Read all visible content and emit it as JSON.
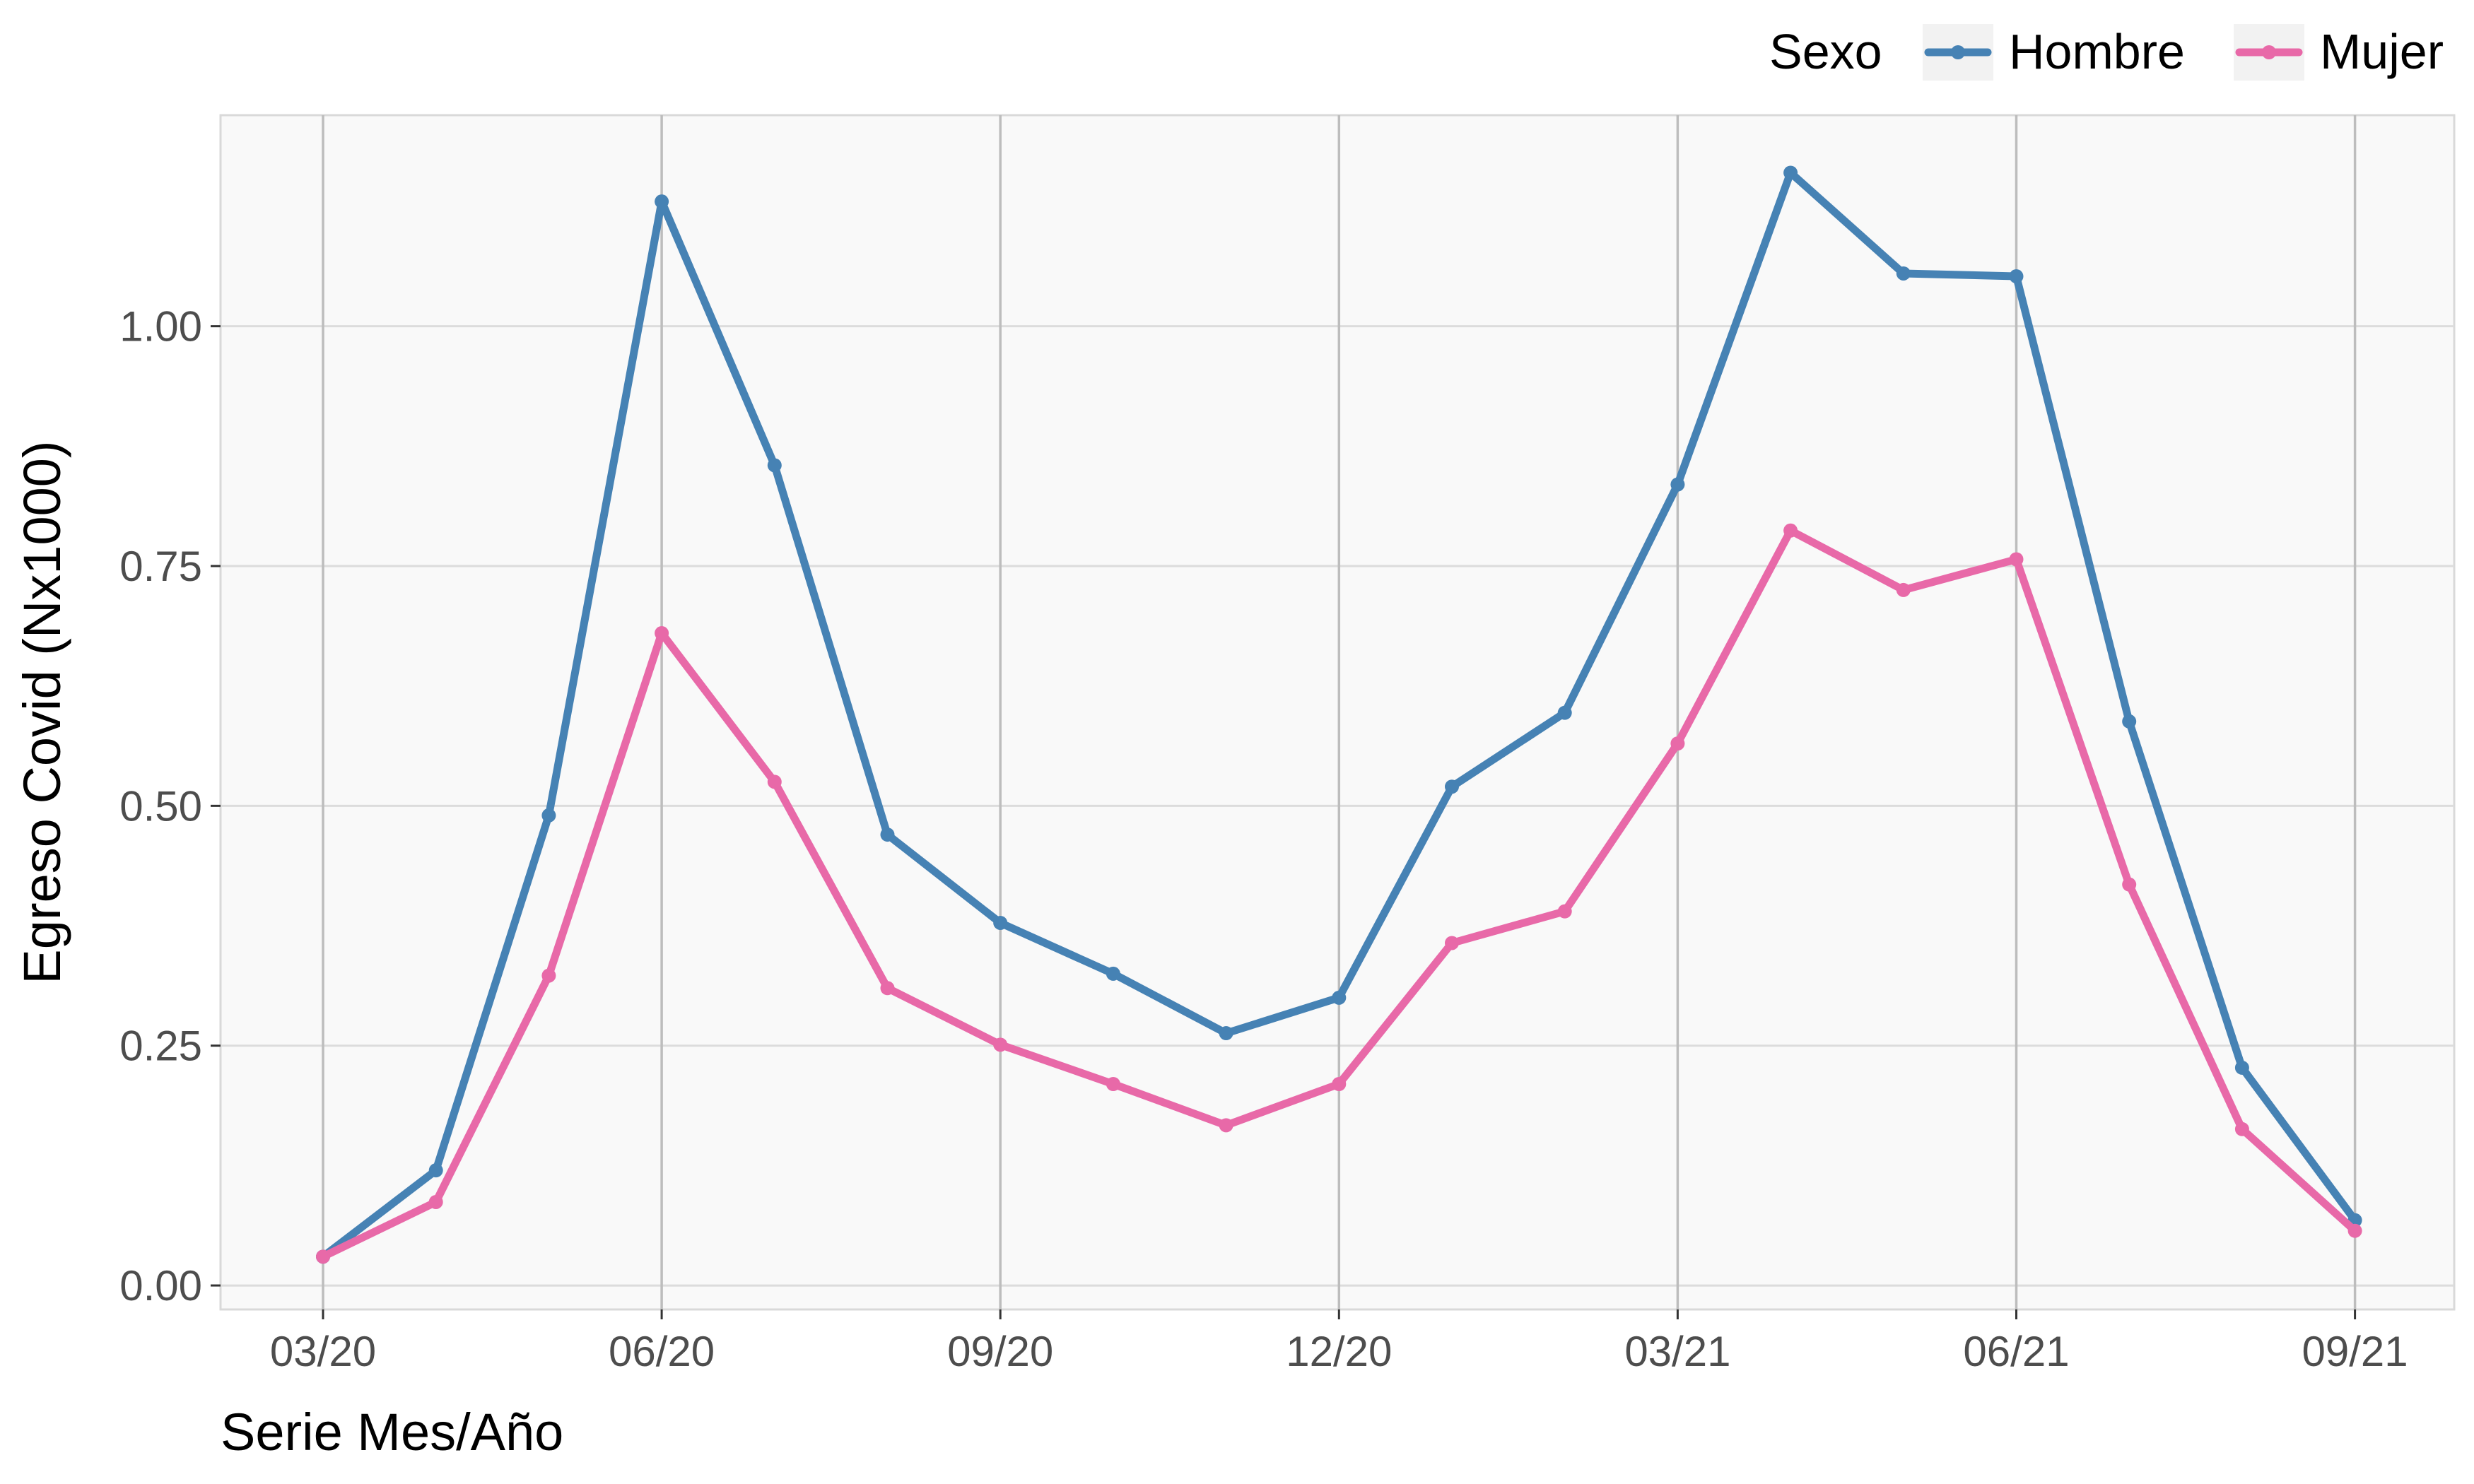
{
  "chart_data": {
    "type": "line",
    "xlabel": "Serie Mes/Año",
    "ylabel": "Egreso Covid (Nx1000)",
    "x": [
      "03/20",
      "04/20",
      "05/20",
      "06/20",
      "07/20",
      "08/20",
      "09/20",
      "10/20",
      "11/20",
      "12/20",
      "01/21",
      "02/21",
      "03/21",
      "04/21",
      "05/21",
      "06/21",
      "07/21",
      "08/21",
      "09/21"
    ],
    "x_ticks": [
      "03/20",
      "06/20",
      "09/20",
      "12/20",
      "03/21",
      "06/21",
      "09/21"
    ],
    "y_ticks": [
      "0.00",
      "0.25",
      "0.50",
      "0.75",
      "1.00"
    ],
    "ylim": [
      -0.025,
      1.22
    ],
    "grid": true,
    "legend": {
      "title": "Sexo",
      "position": "top-right"
    },
    "series": [
      {
        "name": "Hombre",
        "color": "#4682B4",
        "values": [
          0.03,
          0.12,
          0.49,
          1.13,
          0.855,
          0.47,
          0.378,
          0.325,
          0.263,
          0.3,
          0.52,
          0.597,
          0.835,
          1.16,
          1.055,
          1.052,
          0.588,
          0.227,
          0.068
        ]
      },
      {
        "name": "Mujer",
        "color": "#E869A8",
        "values": [
          0.03,
          0.087,
          0.323,
          0.68,
          0.525,
          0.31,
          0.251,
          0.21,
          0.167,
          0.21,
          0.357,
          0.39,
          0.565,
          0.787,
          0.725,
          0.757,
          0.418,
          0.163,
          0.057
        ]
      }
    ]
  }
}
